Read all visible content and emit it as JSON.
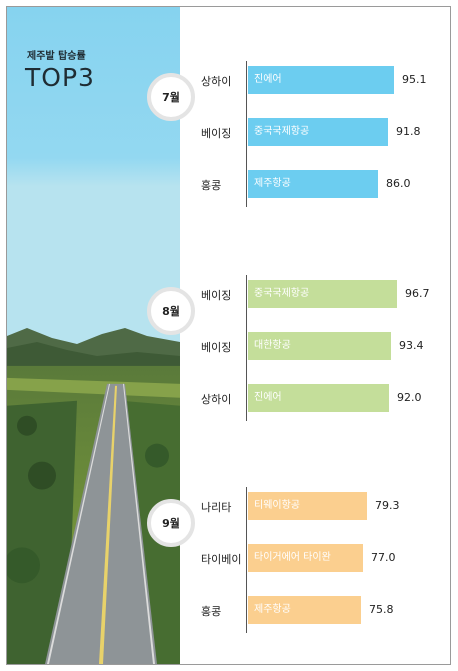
{
  "header": {
    "subtitle": "제주발 탑승률",
    "title": "TOP3"
  },
  "colors": {
    "sky": "#86d3ef",
    "jul": "#6ccdf0",
    "aug": "#c4de9a",
    "sep": "#fbcf8f"
  },
  "chart_data": {
    "type": "bar",
    "orientation": "horizontal",
    "groups": [
      {
        "month": "7월",
        "color": "#6ccdf0",
        "items": [
          {
            "city": "상하이",
            "airline": "진에어",
            "value": 95.1
          },
          {
            "city": "베이징",
            "airline": "중국국제항공",
            "value": 91.8
          },
          {
            "city": "홍콩",
            "airline": "제주항공",
            "value": 86.0
          }
        ]
      },
      {
        "month": "8월",
        "color": "#c4de9a",
        "items": [
          {
            "city": "베이징",
            "airline": "중국국제항공",
            "value": 96.7
          },
          {
            "city": "베이징",
            "airline": "대한항공",
            "value": 93.4
          },
          {
            "city": "상하이",
            "airline": "진에어",
            "value": 92.0
          }
        ]
      },
      {
        "month": "9월",
        "color": "#fbcf8f",
        "items": [
          {
            "city": "나리타",
            "airline": "티웨이항공",
            "value": 79.3
          },
          {
            "city": "타이베이",
            "airline": "타이거에어 타이완",
            "value": 77.0
          },
          {
            "city": "홍콩",
            "airline": "제주항공",
            "value": 75.8
          }
        ]
      }
    ]
  }
}
